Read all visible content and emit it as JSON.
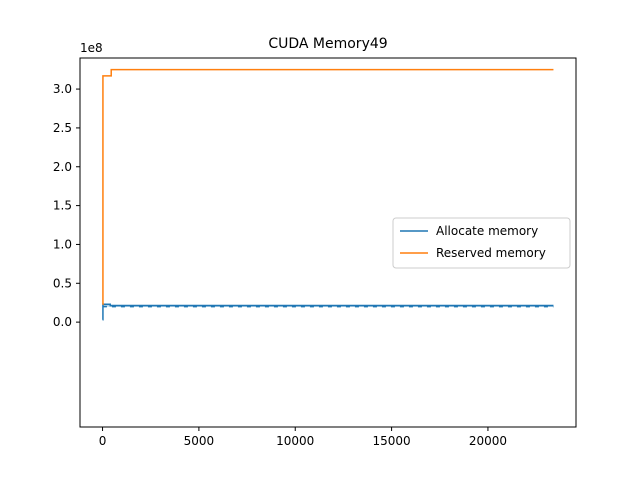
{
  "chart_data": {
    "type": "line",
    "title": "CUDA Memory49",
    "xlabel": "",
    "ylabel": "",
    "y_offset_label": "1e8",
    "xlim": [
      -1170,
      24570
    ],
    "ylim": [
      -1.35,
      3.4
    ],
    "x_ticks": [
      0,
      5000,
      10000,
      15000,
      20000
    ],
    "x_tick_labels": [
      "0",
      "5000",
      "10000",
      "15000",
      "20000"
    ],
    "y_ticks": [
      0.0,
      0.5,
      1.0,
      1.5,
      2.0,
      2.5,
      3.0
    ],
    "y_tick_labels": [
      "0.0",
      "0.5",
      "1.0",
      "1.5",
      "2.0",
      "2.5",
      "3.0"
    ],
    "grid": false,
    "legend_position": "center-right",
    "series": [
      {
        "name": "Allocate memory",
        "color": "#1f77b4",
        "x": [
          0,
          20,
          20,
          400,
          400,
          23400
        ],
        "y": [
          0.03,
          0.03,
          0.23,
          0.23,
          0.21,
          0.21
        ],
        "band": {
          "low": 0.2,
          "high": 0.23,
          "x_start": 20,
          "x_end": 23400
        }
      },
      {
        "name": "Reserved memory",
        "color": "#ff7f0e",
        "x": [
          0,
          20,
          20,
          450,
          450,
          23400
        ],
        "y": [
          0.23,
          0.23,
          3.17,
          3.17,
          3.25,
          3.25
        ]
      }
    ]
  }
}
